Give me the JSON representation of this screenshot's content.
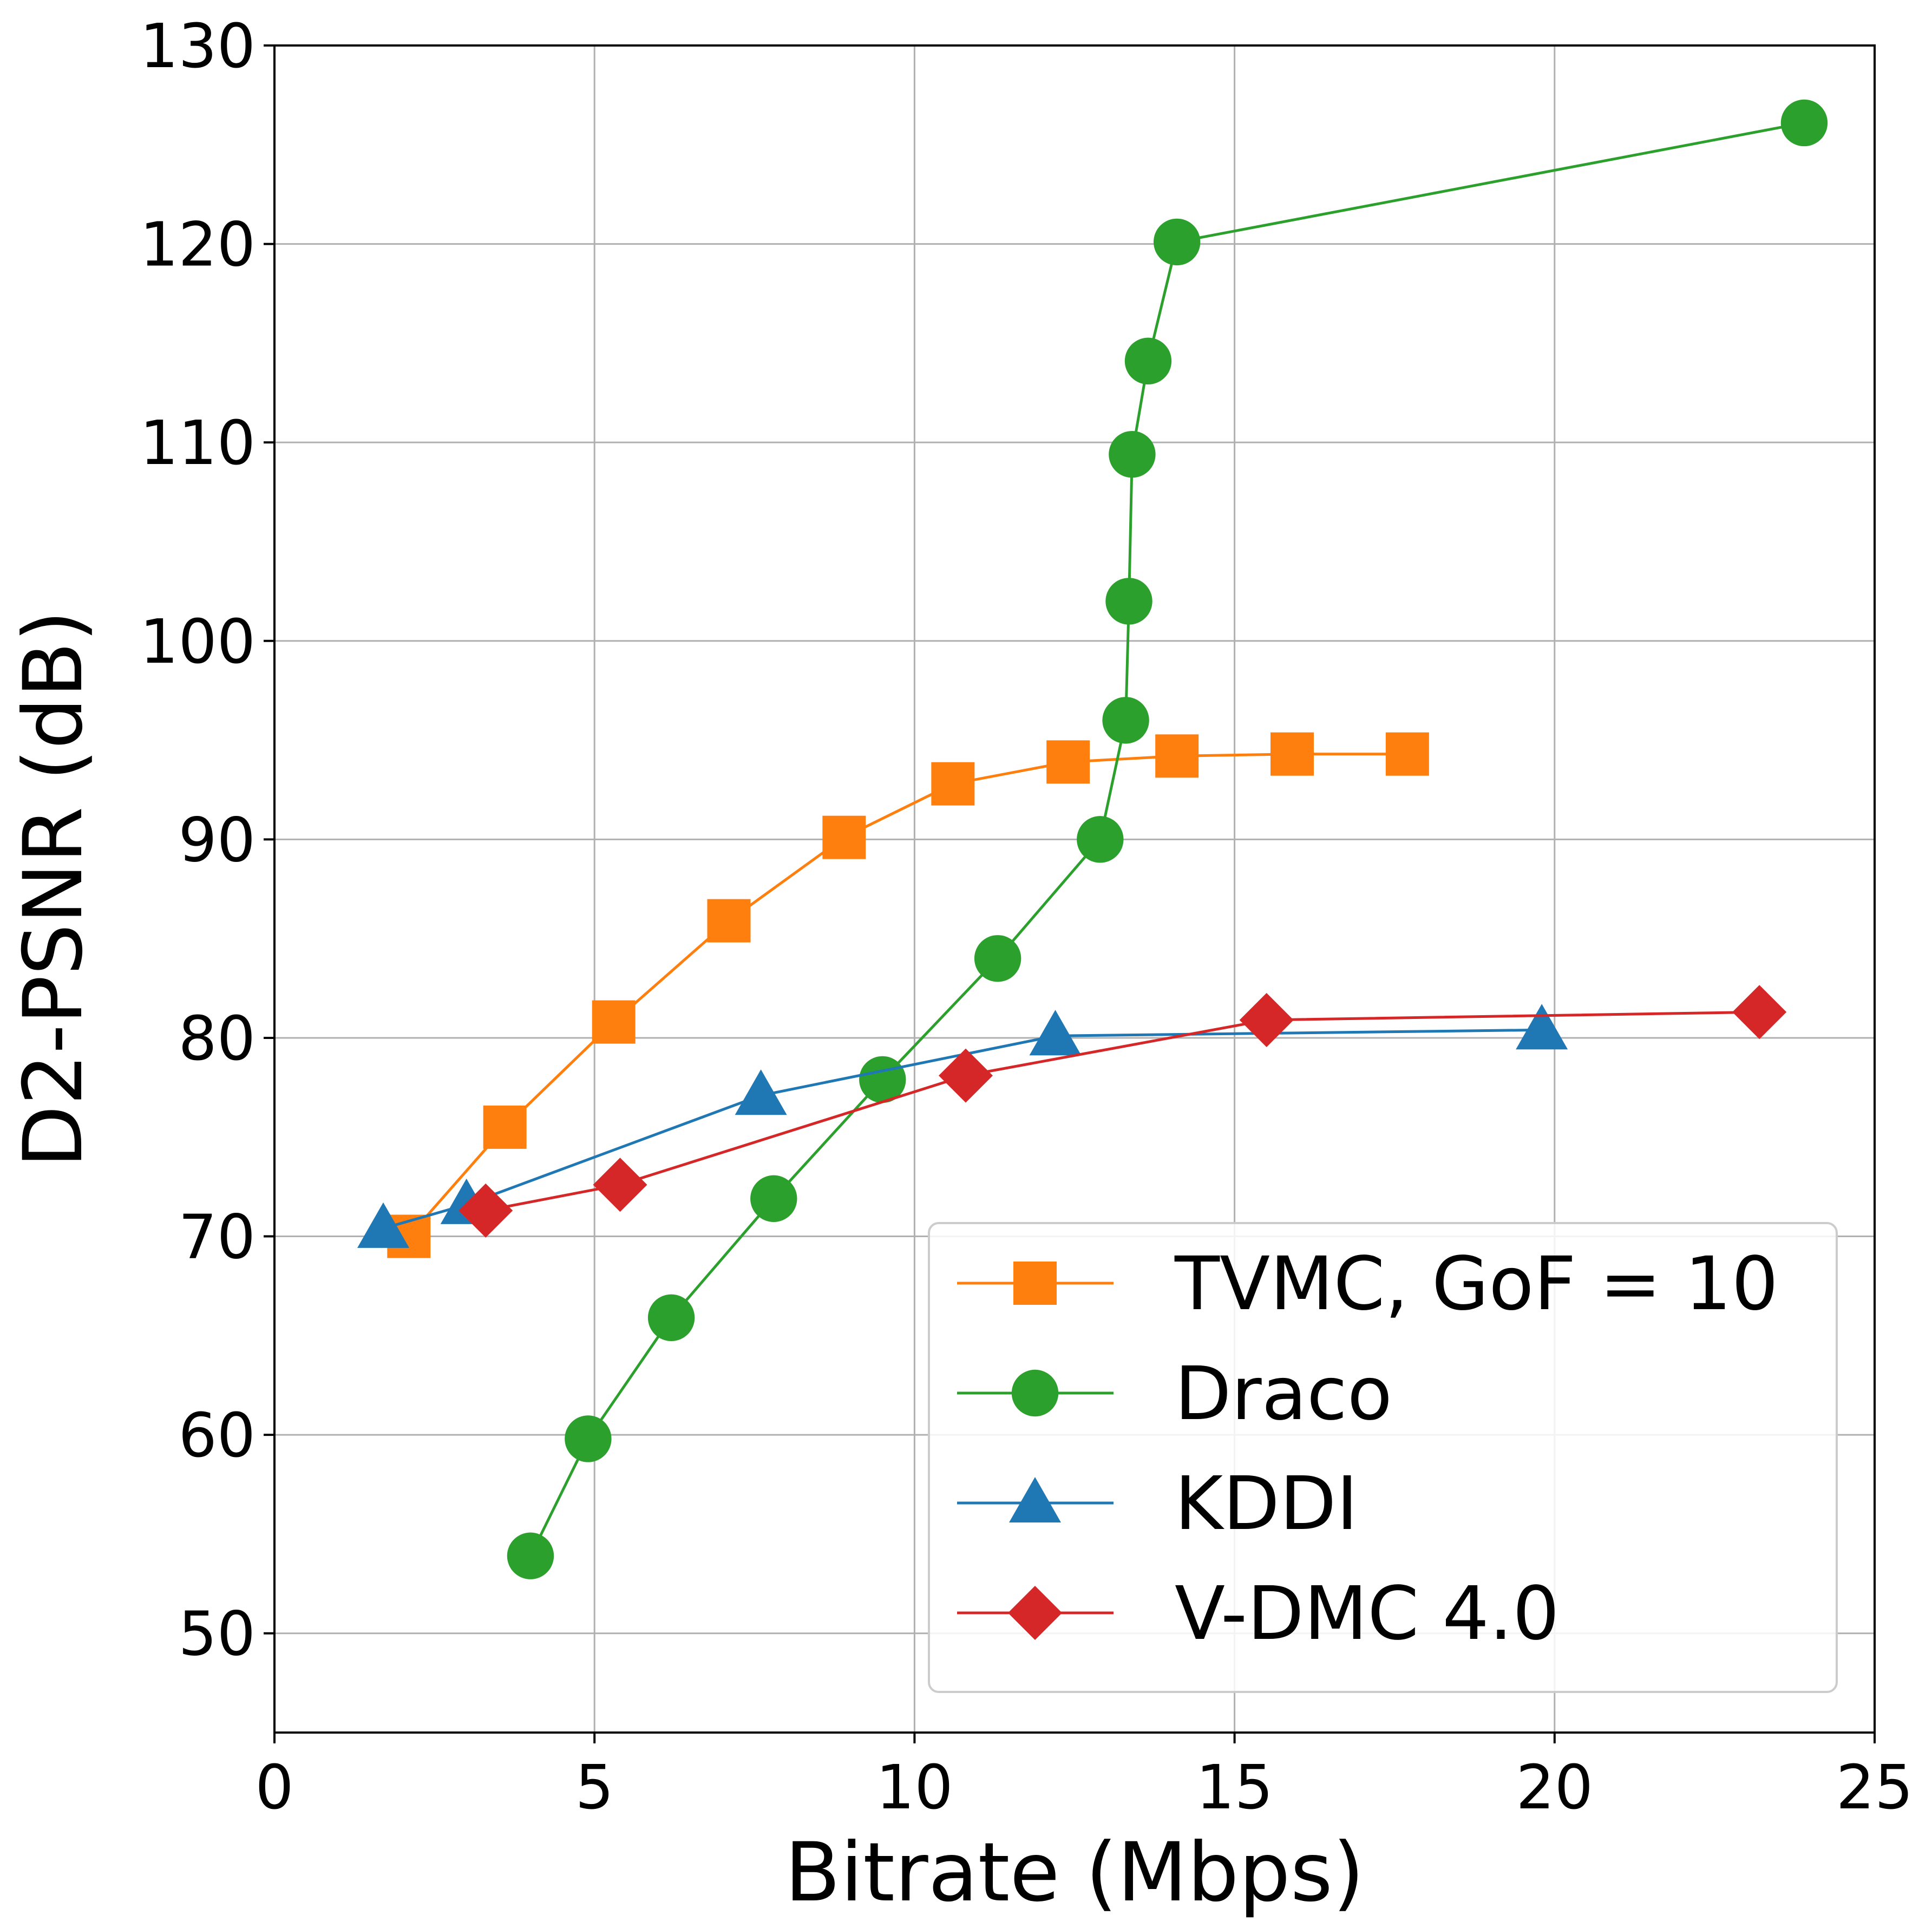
{
  "chart_data": {
    "type": "line",
    "title": "",
    "xlabel": "Bitrate (Mbps)",
    "ylabel": "D2-PSNR (dB)",
    "xlim": [
      0,
      25
    ],
    "ylim": [
      45,
      130
    ],
    "xticks": [
      0,
      5,
      10,
      15,
      20,
      25
    ],
    "yticks": [
      50,
      60,
      70,
      80,
      90,
      100,
      110,
      120,
      130
    ],
    "xtick_labels": [
      "0",
      "5",
      "10",
      "15",
      "20",
      "25"
    ],
    "ytick_labels": [
      "50",
      "60",
      "70",
      "80",
      "90",
      "100",
      "110",
      "120",
      "130"
    ],
    "grid": true,
    "legend_position": "lower-right",
    "series": [
      {
        "name": "TVMC, GoF = 10",
        "color": "#ff7f0e",
        "marker": "square",
        "points": [
          [
            2.1,
            70.0
          ],
          [
            3.6,
            75.5
          ],
          [
            5.3,
            80.8
          ],
          [
            7.1,
            85.9
          ],
          [
            8.9,
            90.1
          ],
          [
            10.6,
            92.8
          ],
          [
            12.4,
            93.9
          ],
          [
            14.1,
            94.2
          ],
          [
            15.9,
            94.3
          ],
          [
            17.7,
            94.3
          ]
        ]
      },
      {
        "name": "Draco",
        "color": "#2ca02c",
        "marker": "circle",
        "points": [
          [
            4.0,
            53.9
          ],
          [
            4.9,
            59.8
          ],
          [
            6.2,
            65.9
          ],
          [
            7.8,
            71.9
          ],
          [
            9.5,
            77.9
          ],
          [
            11.3,
            84.0
          ],
          [
            12.9,
            90.0
          ],
          [
            13.3,
            96.0
          ],
          [
            13.35,
            102.0
          ],
          [
            13.4,
            109.4
          ],
          [
            13.65,
            114.1
          ],
          [
            14.1,
            120.1
          ],
          [
            23.9,
            126.1
          ]
        ]
      },
      {
        "name": "KDDI",
        "color": "#1f77b4",
        "marker": "triangle",
        "points": [
          [
            1.7,
            70.4
          ],
          [
            3.0,
            71.6
          ],
          [
            7.6,
            77.1
          ],
          [
            12.2,
            80.1
          ],
          [
            19.8,
            80.4
          ]
        ]
      },
      {
        "name": "V-DMC 4.0",
        "color": "#d62728",
        "marker": "diamond",
        "points": [
          [
            3.3,
            71.3
          ],
          [
            5.4,
            72.6
          ],
          [
            10.8,
            78.1
          ],
          [
            15.5,
            80.9
          ],
          [
            23.2,
            81.3
          ]
        ]
      }
    ]
  }
}
